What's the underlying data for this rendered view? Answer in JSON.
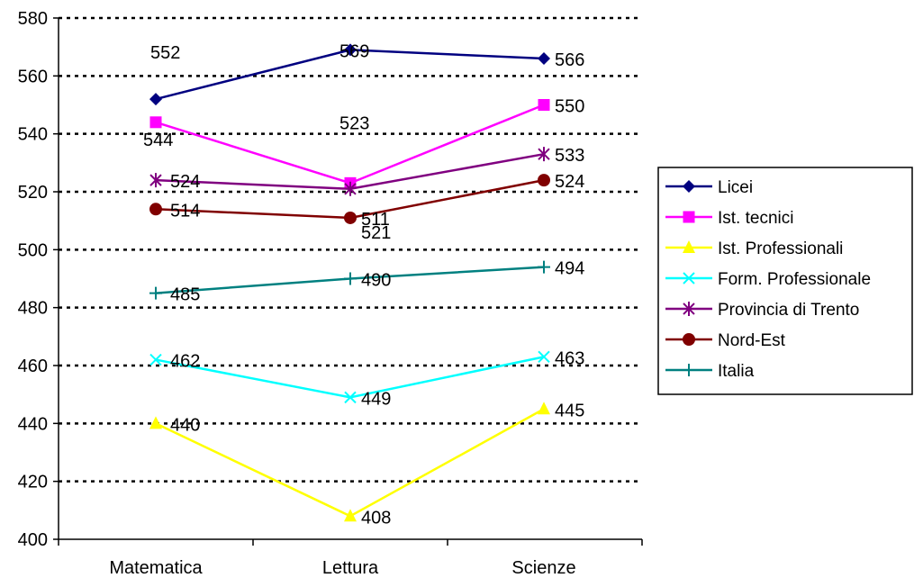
{
  "chart_data": {
    "type": "line",
    "categories": [
      "Matematica",
      "Lettura",
      "Scienze"
    ],
    "ylim": [
      400,
      580
    ],
    "yticks": [
      400,
      420,
      440,
      460,
      480,
      500,
      520,
      540,
      560,
      580
    ],
    "grid": "horizontal-dotted",
    "legend_position": "right",
    "series": [
      {
        "name": "Licei",
        "values": [
          552,
          569,
          566
        ],
        "color": "#000080",
        "marker": "diamond"
      },
      {
        "name": "Ist. tecnici",
        "values": [
          544,
          523,
          550
        ],
        "color": "#FF00FF",
        "marker": "square"
      },
      {
        "name": "Ist. Professionali",
        "values": [
          440,
          408,
          445
        ],
        "color": "#FFFF00",
        "marker": "triangle"
      },
      {
        "name": "Form. Professionale",
        "values": [
          462,
          449,
          463
        ],
        "color": "#00FFFF",
        "marker": "x"
      },
      {
        "name": "Provincia di Trento",
        "values": [
          524,
          521,
          533
        ],
        "color": "#800080",
        "marker": "star"
      },
      {
        "name": "Nord-Est",
        "values": [
          514,
          511,
          524
        ],
        "color": "#800000",
        "marker": "circle"
      },
      {
        "name": "Italia",
        "values": [
          485,
          490,
          494
        ],
        "color": "#008080",
        "marker": "plus"
      }
    ]
  }
}
